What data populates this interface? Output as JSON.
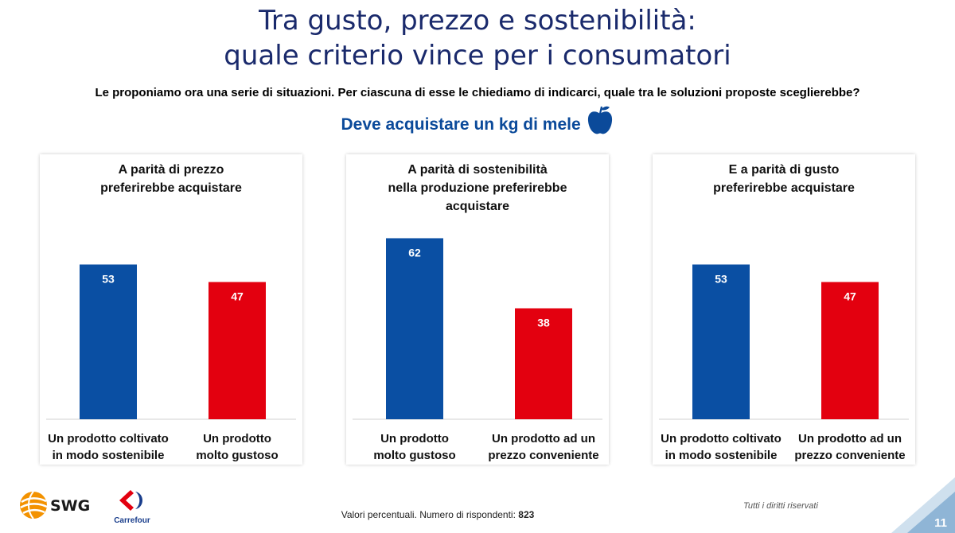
{
  "header": {
    "title_line1": "Tra gusto, prezzo e sostenibilità:",
    "title_line2": "quale criterio vince per i consumatori",
    "question": "Le proponiamo ora una serie di situazioni. Per ciascuna di esse le chiediamo di indicarci, quale tra le soluzioni proposte sceglierebbe?",
    "scenario": "Deve acquistare un kg di mele"
  },
  "colors": {
    "blue": "#0a4fa3",
    "red": "#e3000f",
    "title": "#1a2a6c"
  },
  "chart_data": [
    {
      "type": "bar",
      "title": "A parità di prezzo\npreferirebbe acquistare",
      "categories": [
        "Un prodotto coltivato\nin modo sostenibile",
        "Un prodotto\nmolto gustoso"
      ],
      "values": [
        53,
        47
      ],
      "colors": [
        "#0a4fa3",
        "#e3000f"
      ],
      "ylim": [
        0,
        100
      ]
    },
    {
      "type": "bar",
      "title": "A parità di sostenibilità\nnella produzione preferirebbe\nacquistare",
      "categories": [
        "Un prodotto\nmolto gustoso",
        "Un prodotto ad un\nprezzo conveniente"
      ],
      "values": [
        62,
        38
      ],
      "colors": [
        "#0a4fa3",
        "#e3000f"
      ],
      "ylim": [
        0,
        100
      ]
    },
    {
      "type": "bar",
      "title": "E a parità di gusto\npreferirebbe acquistare",
      "categories": [
        "Un prodotto coltivato\nin modo sostenibile",
        "Un prodotto ad un\nprezzo conveniente"
      ],
      "values": [
        53,
        47
      ],
      "colors": [
        "#0a4fa3",
        "#e3000f"
      ],
      "ylim": [
        0,
        100
      ]
    }
  ],
  "footer": {
    "note": "Valori percentuali.  Numero di rispondenti: ",
    "respondents": "823",
    "rights": "Tutti i diritti riservati",
    "page": "11",
    "swg": "SWG",
    "carrefour": "Carrefour"
  }
}
